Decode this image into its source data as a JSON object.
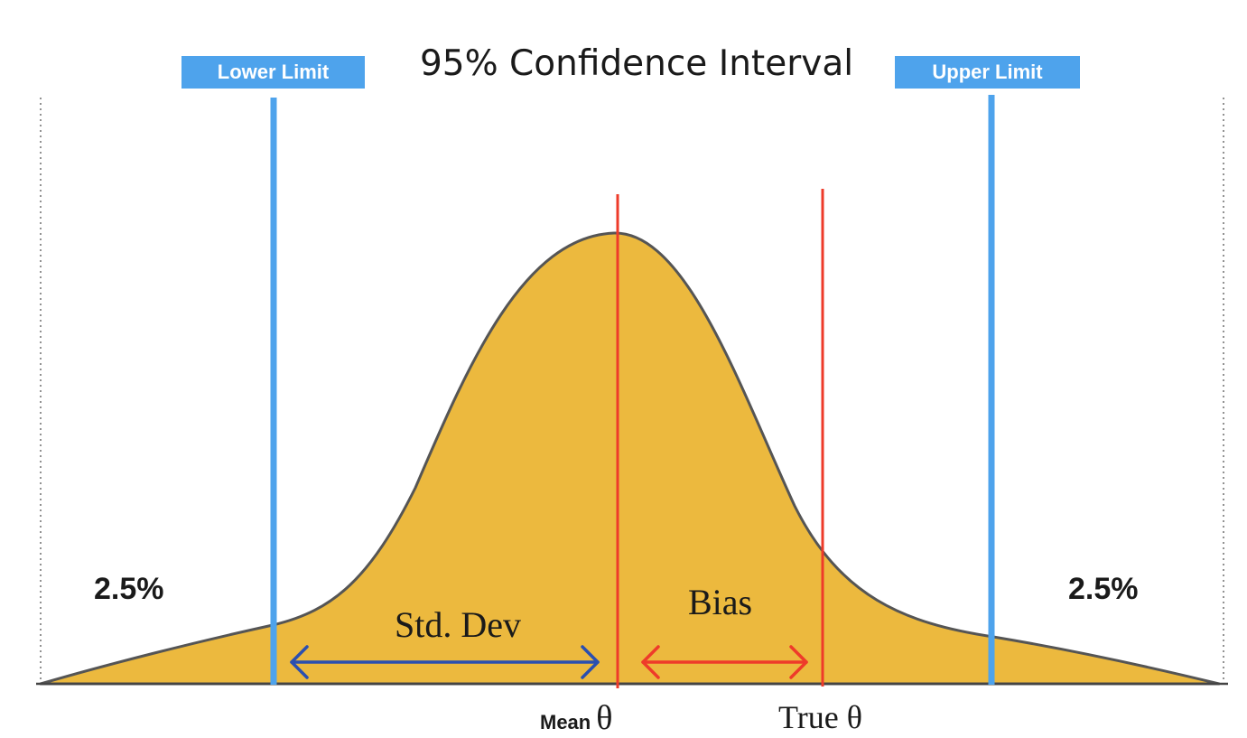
{
  "title": "95% Confidence Interval",
  "lower_limit_label": "Lower Limit",
  "upper_limit_label": "Upper Limit",
  "tail_left_label": "2.5%",
  "tail_right_label": "2.5%",
  "std_dev_label": "Std. Dev",
  "bias_label": "Bias",
  "mean_label": "Mean",
  "mean_symbol": "θ",
  "true_theta_label": "True θ",
  "colors": {
    "curve_fill": "#ecb93e",
    "curve_stroke": "#555555",
    "limit_line": "#4ea3ec",
    "theta_line": "#ee3b2a",
    "std_arrow": "#2a4fb0",
    "bias_arrow": "#ee3b2a",
    "boundary_dotted": "#777777"
  }
}
